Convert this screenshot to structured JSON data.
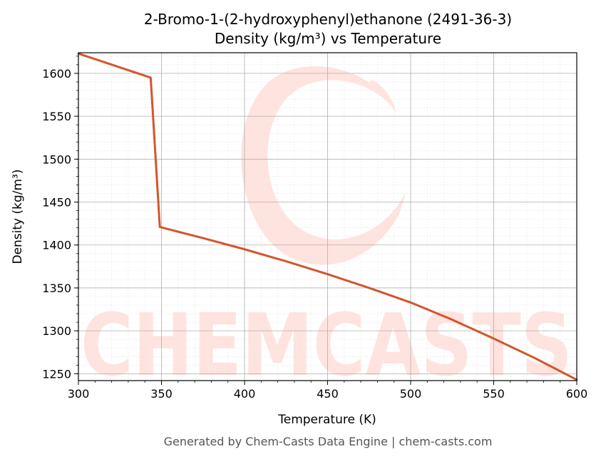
{
  "chart_data": {
    "type": "line",
    "title_line1": "2-Bromo-1-(2-hydroxyphenyl)ethanone (2491-36-3)",
    "title_line2": "Density (kg/m³) vs Temperature",
    "xlabel": "Temperature (K)",
    "ylabel": "Density (kg/m³)",
    "xlim": [
      300,
      600
    ],
    "ylim": [
      1242,
      1624
    ],
    "xticks": [
      300,
      350,
      400,
      450,
      500,
      550,
      600
    ],
    "yticks": [
      1250,
      1300,
      1350,
      1400,
      1450,
      1500,
      1550,
      1600
    ],
    "grid": true,
    "series": [
      {
        "color": "#d4552a",
        "x": [
          300,
          343.5,
          349,
          375,
          400,
          425,
          450,
          475,
          500,
          525,
          550,
          575,
          600
        ],
        "y": [
          1623,
          1595,
          1421,
          1408,
          1395,
          1381,
          1366,
          1350,
          1333,
          1313,
          1291,
          1268,
          1243
        ]
      }
    ]
  },
  "watermark": {
    "text": "CHEMCASTS",
    "color": "#ffe3de"
  },
  "footer": "Generated by Chem-Casts Data Engine | chem-casts.com"
}
